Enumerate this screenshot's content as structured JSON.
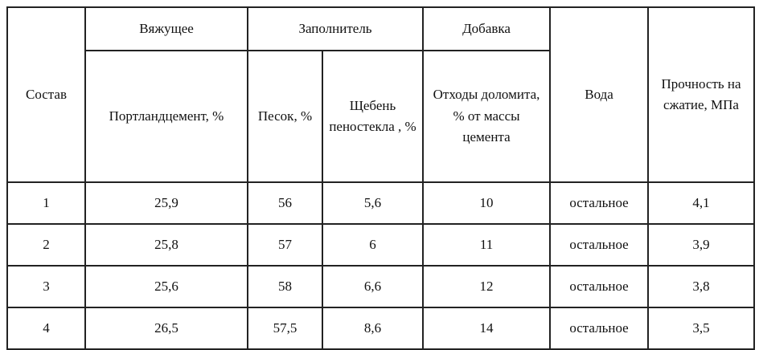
{
  "table": {
    "header": {
      "composition": "Состав",
      "binder": "Вяжущее",
      "filler": "Заполнитель",
      "additive": "Добавка",
      "water": "Вода",
      "strength": "Прочность на сжатие, МПа"
    },
    "subheader": [
      "Портландцемент, %",
      "Песок, %",
      "Щебень пеностекла , %",
      "Отходы доломита, % от массы цемента"
    ],
    "rows": [
      [
        "1",
        "25,9",
        "56",
        "5,6",
        "10",
        "остальное",
        "4,1"
      ],
      [
        "2",
        "25,8",
        "57",
        "6",
        "11",
        "остальное",
        "3,9"
      ],
      [
        "3",
        "25,6",
        "58",
        "6,6",
        "12",
        "остальное",
        "3,8"
      ],
      [
        "4",
        "26,5",
        "57,5",
        "8,6",
        "14",
        "остальное",
        "3,5"
      ]
    ]
  }
}
